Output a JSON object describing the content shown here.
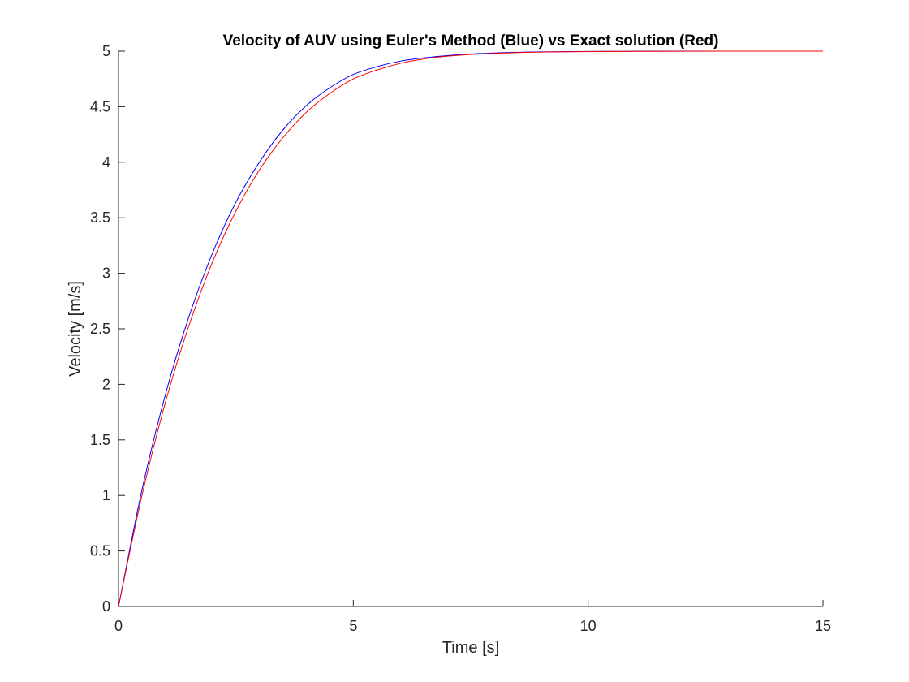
{
  "chart_data": {
    "type": "line",
    "title": "Velocity of AUV using Euler's Method (Blue) vs Exact solution (Red)",
    "xlabel": "Time [s]",
    "ylabel": "Velocity [m/s]",
    "xlim": [
      0,
      15
    ],
    "ylim": [
      0,
      5
    ],
    "grid": false,
    "legend": "none",
    "box": "open (left and bottom axes only)",
    "xticks": [
      0,
      5,
      10,
      15
    ],
    "xtick_labels": [
      "0",
      "5",
      "10",
      "15"
    ],
    "yticks": [
      0,
      0.5,
      1,
      1.5,
      2,
      2.5,
      3,
      3.5,
      4,
      4.5,
      5
    ],
    "ytick_labels": [
      "0",
      "0.5",
      "1",
      "1.5",
      "2",
      "2.5",
      "3",
      "3.5",
      "4",
      "4.5",
      "5"
    ],
    "series": [
      {
        "color": "#0000ff",
        "x": [
          0,
          0.5,
          1,
          1.5,
          2,
          2.5,
          3,
          3.5,
          4,
          4.5,
          5,
          5.5,
          6,
          6.5,
          7,
          7.5,
          8,
          8.5,
          9,
          10,
          11,
          12,
          13,
          14,
          15
        ],
        "y": [
          0,
          1.05,
          1.91,
          2.61,
          3.18,
          3.64,
          4.0,
          4.29,
          4.51,
          4.67,
          4.79,
          4.86,
          4.91,
          4.94,
          4.96,
          4.975,
          4.984,
          4.99,
          4.994,
          4.997,
          4.999,
          5.0,
          5.0,
          5.0,
          5.0
        ]
      },
      {
        "color": "#ff0000",
        "x": [
          0,
          0.5,
          1,
          1.5,
          2,
          2.5,
          3,
          3.5,
          4,
          4.5,
          5,
          5.5,
          6,
          6.5,
          7,
          7.5,
          8,
          8.5,
          9,
          10,
          11,
          12,
          13,
          14,
          15
        ],
        "y": [
          0,
          1.0,
          1.84,
          2.53,
          3.1,
          3.56,
          3.93,
          4.22,
          4.45,
          4.62,
          4.75,
          4.83,
          4.89,
          4.93,
          4.955,
          4.97,
          4.98,
          4.987,
          4.992,
          4.996,
          4.998,
          4.999,
          5.0,
          5.0,
          5.0
        ]
      }
    ]
  }
}
